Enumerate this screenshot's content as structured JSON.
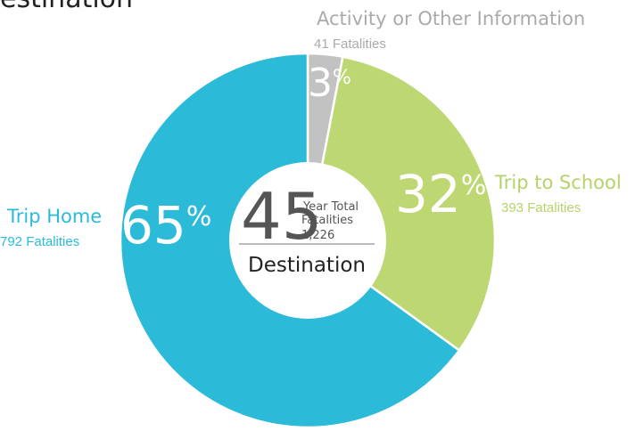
{
  "chart_data": {
    "type": "donut",
    "title": "estination",
    "categories": [
      "Activity or Other Information",
      "Trip to School",
      "Trip Home"
    ],
    "values": [
      3,
      32,
      65
    ],
    "unit": "%",
    "count_labels": [
      "41 Fatalities",
      "393 Fatalities",
      "792 Fatalities"
    ],
    "colors": [
      "#c2c2c2",
      "#bdd873",
      "#2bbbd8"
    ],
    "center": {
      "years": "45",
      "line1": "Year Total",
      "line2": "Fatalities",
      "total": "1,226",
      "caption": "Destination"
    }
  }
}
